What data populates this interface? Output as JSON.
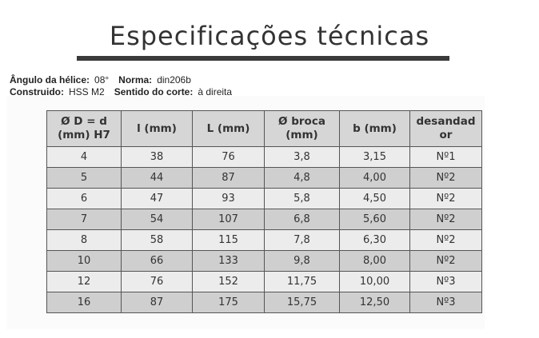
{
  "title": "Especificações técnicas",
  "specs": {
    "helix_angle_label": "Ângulo da hélice:",
    "helix_angle_value": "08°",
    "norm_label": "Norma:",
    "norm_value": "din206b",
    "built_label": "Construido:",
    "built_value": "HSS M2",
    "cut_label": "Sentido do corte:",
    "cut_value": "à direita"
  },
  "table": {
    "headers": [
      [
        "Ø D = d",
        "(mm) H7"
      ],
      [
        "l (mm)"
      ],
      [
        "L (mm)"
      ],
      [
        "Ø broca",
        "(mm)"
      ],
      [
        "b (mm)"
      ],
      [
        "desandad",
        "or"
      ]
    ],
    "rows": [
      [
        "4",
        "38",
        "76",
        "3,8",
        "3,15",
        "Nº1"
      ],
      [
        "5",
        "44",
        "87",
        "4,8",
        "4,00",
        "Nº2"
      ],
      [
        "6",
        "47",
        "93",
        "5,8",
        "4,50",
        "Nº2"
      ],
      [
        "7",
        "54",
        "107",
        "6,8",
        "5,60",
        "Nº2"
      ],
      [
        "8",
        "58",
        "115",
        "7,8",
        "6,30",
        "Nº2"
      ],
      [
        "10",
        "66",
        "133",
        "9,8",
        "8,00",
        "Nº2"
      ],
      [
        "12",
        "76",
        "152",
        "11,75",
        "10,00",
        "Nº3"
      ],
      [
        "16",
        "87",
        "175",
        "15,75",
        "12,50",
        "Nº3"
      ]
    ]
  }
}
